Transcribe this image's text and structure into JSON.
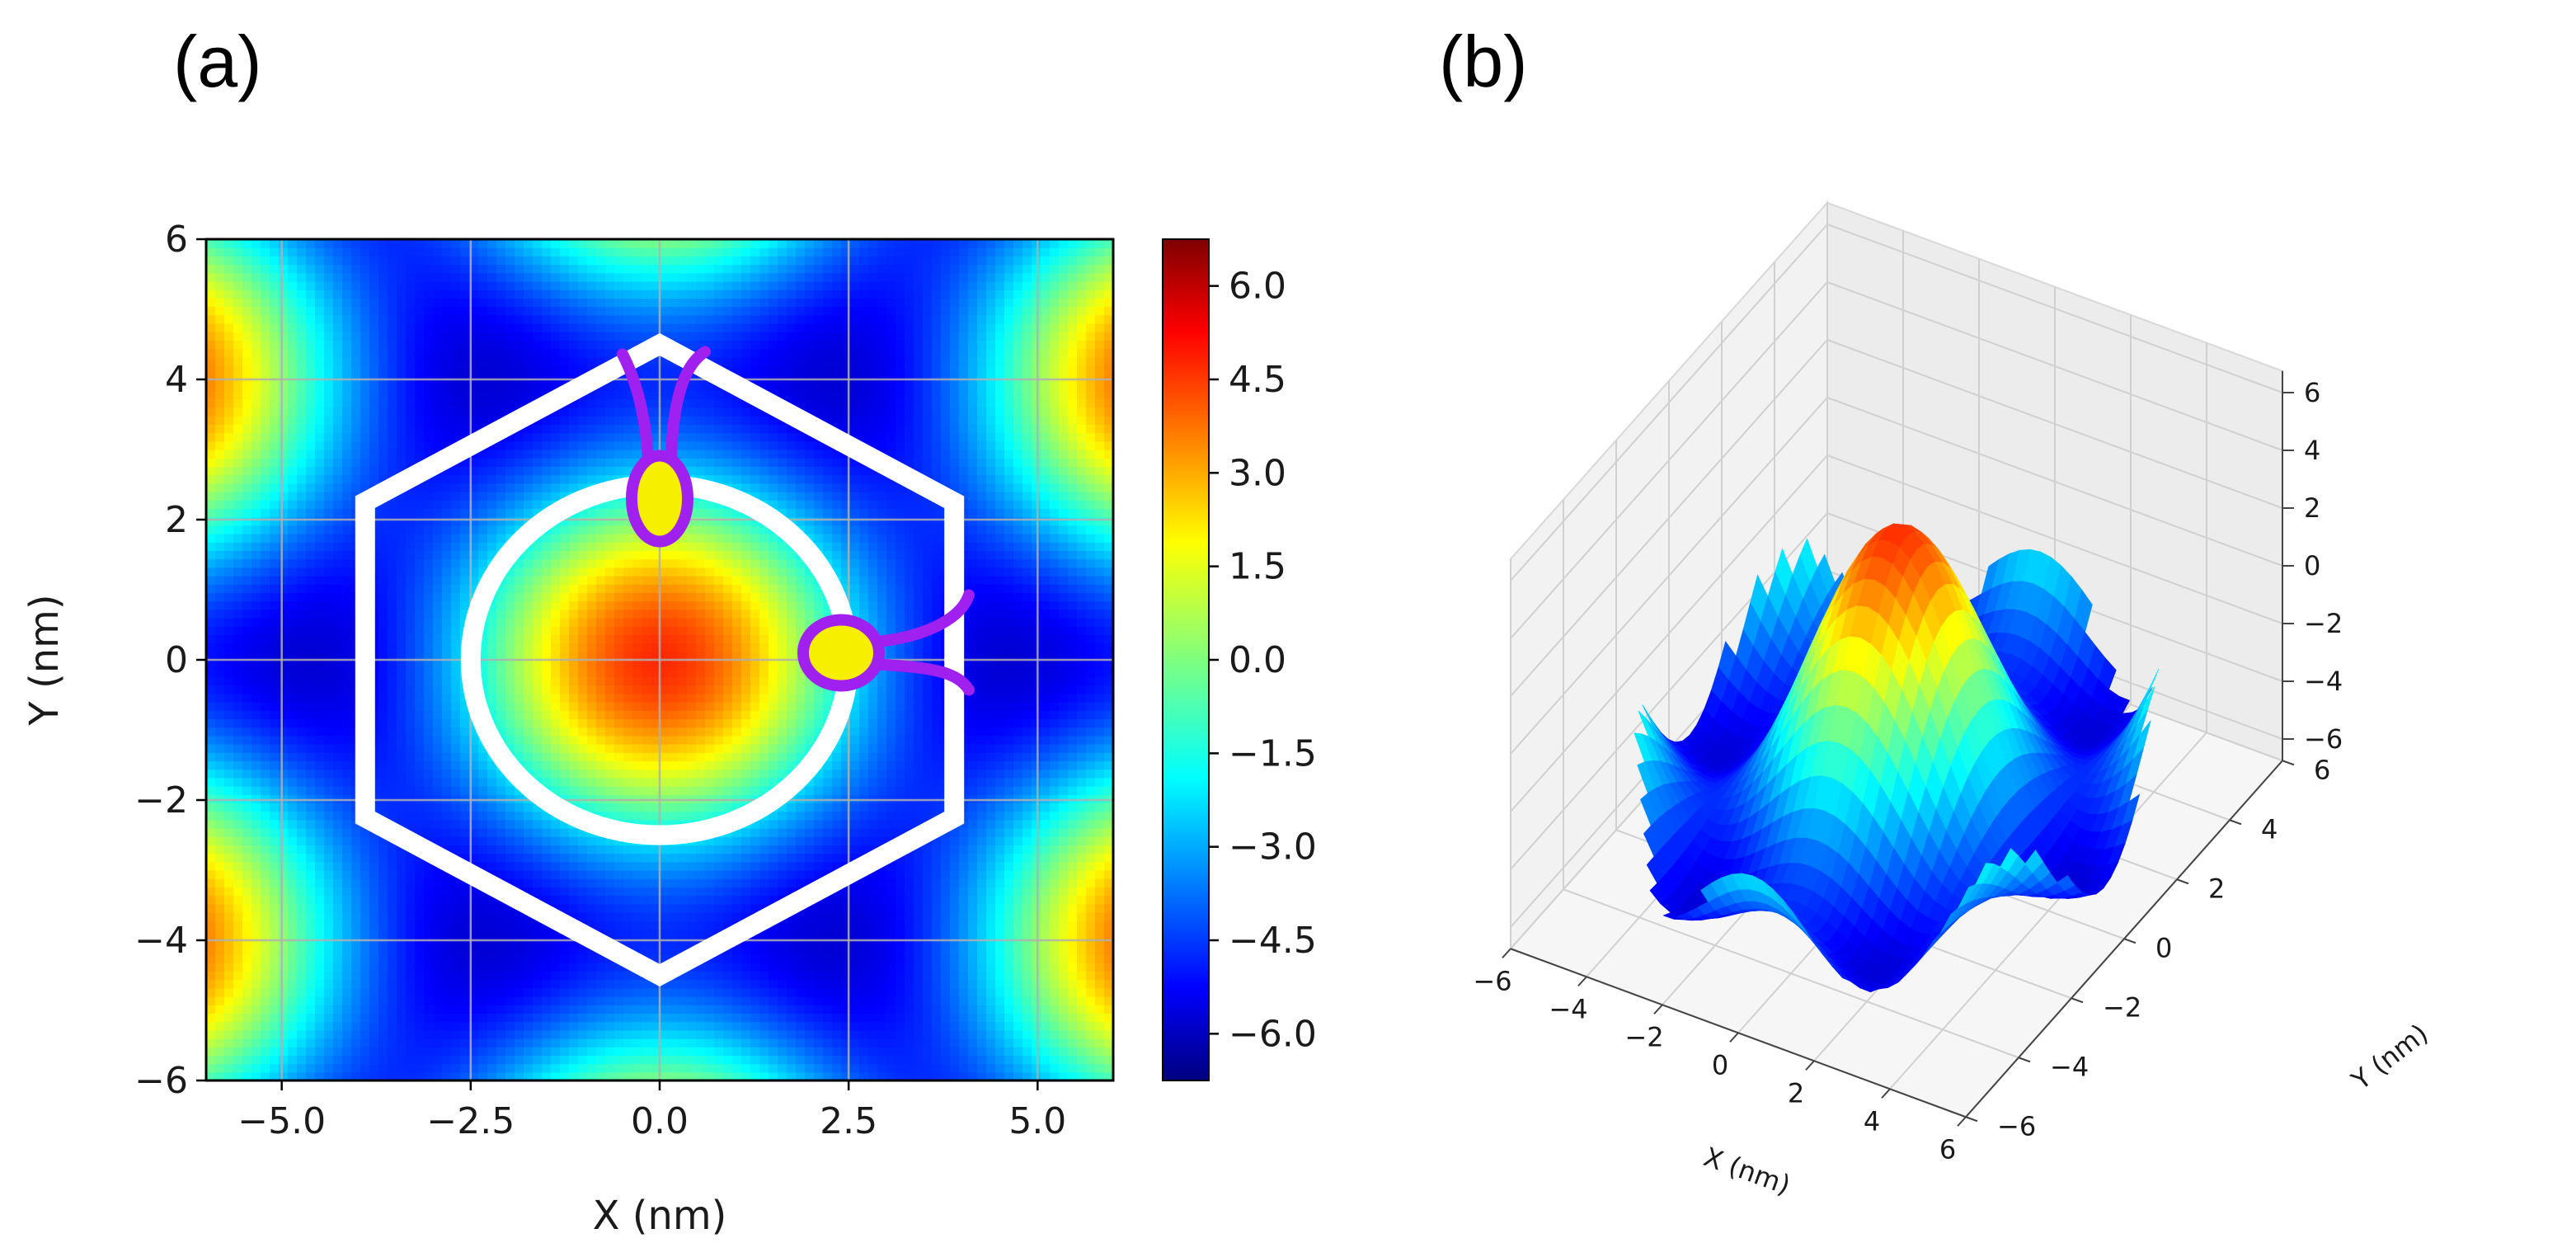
{
  "panels": {
    "a_label": "(a)",
    "b_label": "(b)"
  },
  "chart_data": [
    {
      "panel": "(a)",
      "type": "heatmap",
      "title": "",
      "xlabel": "X (nm)",
      "ylabel": "Y (nm)",
      "xlim": [
        -6,
        6
      ],
      "ylim": [
        -6,
        6
      ],
      "zlim": [
        -6.75,
        6.75
      ],
      "colormap": "jet",
      "grid": true,
      "x_ticks": [
        -5.0,
        -2.5,
        0.0,
        2.5,
        5.0
      ],
      "x_tick_labels": [
        "−5.0",
        "−2.5",
        "0.0",
        "2.5",
        "5.0"
      ],
      "y_ticks": [
        6,
        4,
        2,
        0,
        -2,
        -4,
        -6
      ],
      "y_tick_labels": [
        "6",
        "4",
        "2",
        "0",
        "−2",
        "−4",
        "−6"
      ],
      "colorbar_ticks": [
        6.0,
        4.5,
        3.0,
        1.5,
        0.0,
        -1.5,
        -3.0,
        -4.5,
        -6.0
      ],
      "colorbar_tick_labels": [
        "6.0",
        "4.5",
        "3.0",
        "1.5",
        "0.0",
        "−1.5",
        "−3.0",
        "−4.5",
        "−6.0"
      ],
      "field_model": "z = sum of three cosine waves at 0, 60, 120 degrees (hexagonal lattice)",
      "lattice_spacing_nm": 8.0,
      "hexagon_overlay": {
        "center": [
          0,
          0
        ],
        "circumradius_nm": 4.5,
        "color": "#ffffff"
      },
      "circle_overlay": {
        "center": [
          0,
          0
        ],
        "radius_nm": 2.5,
        "color": "#ffffff"
      },
      "molecule_markers": [
        {
          "center_nm": [
            0.0,
            2.3
          ],
          "body_color": "#f7ef00",
          "outline_color": "#a020f0",
          "tails": "up"
        },
        {
          "center_nm": [
            2.4,
            0.1
          ],
          "body_color": "#f7ef00",
          "outline_color": "#a020f0",
          "tails": "right"
        }
      ]
    },
    {
      "panel": "(b)",
      "type": "surface3d",
      "title": "",
      "xlabel": "X (nm)",
      "ylabel": "Y (nm)",
      "zlabel": "",
      "xlim": [
        -6,
        6
      ],
      "ylim": [
        -6,
        6
      ],
      "zlim": [
        -6.75,
        6.75
      ],
      "colormap": "jet",
      "x_ticks": [
        -6,
        -4,
        -2,
        0,
        2,
        4,
        6
      ],
      "x_tick_labels": [
        "−6",
        "−4",
        "−2",
        "0",
        "2",
        "4",
        "6"
      ],
      "y_ticks": [
        -6,
        -4,
        -2,
        0,
        2,
        4,
        6
      ],
      "y_tick_labels": [
        "−6",
        "−4",
        "−2",
        "0",
        "2",
        "4",
        "6"
      ],
      "z_ticks": [
        6,
        4,
        2,
        0,
        -2,
        -4,
        -6
      ],
      "z_tick_labels": [
        "6",
        "4",
        "2",
        "0",
        "−2",
        "−4",
        "−6"
      ],
      "surface": "same hexagonal field as panel (a), shown within radius 5.5 nm",
      "view": {
        "elevation_deg": 30,
        "azimuth_deg": -60
      }
    }
  ]
}
